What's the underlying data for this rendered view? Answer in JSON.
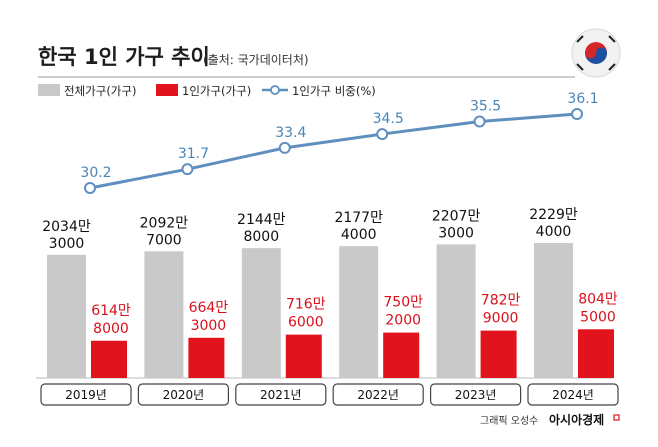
{
  "title": "한국 1인 가구 추이",
  "source": "(출처: 국가데이터처)",
  "credit": {
    "prefix": "그래픽 오성수",
    "brand": "아시아경제"
  },
  "chart_data": {
    "type": "bar",
    "categories": [
      "2019년",
      "2020년",
      "2021년",
      "2022년",
      "2023년",
      "2024년"
    ],
    "series": [
      {
        "name": "전체가구(가구)",
        "color": "#c9c9c9",
        "values": [
          20343000,
          20927000,
          21448000,
          21774000,
          22073000,
          22294000
        ],
        "labels": [
          [
            "2034만",
            "3000"
          ],
          [
            "2092만",
            "7000"
          ],
          [
            "2144만",
            "8000"
          ],
          [
            "2177만",
            "4000"
          ],
          [
            "2207만",
            "3000"
          ],
          [
            "2229만",
            "4000"
          ]
        ]
      },
      {
        "name": "1인가구(가구)",
        "color": "#e1141d",
        "values": [
          6148000,
          6643000,
          7166000,
          7502000,
          7829000,
          8045000
        ],
        "labels": [
          [
            "614만",
            "8000"
          ],
          [
            "664만",
            "3000"
          ],
          [
            "716만",
            "6000"
          ],
          [
            "750만",
            "2000"
          ],
          [
            "782만",
            "9000"
          ],
          [
            "804만",
            "5000"
          ]
        ]
      },
      {
        "name": "1인가구 비중(%)",
        "type": "line",
        "color": "#5f8fbe",
        "values": [
          30.2,
          31.7,
          33.4,
          34.5,
          35.5,
          36.1
        ],
        "labels": [
          "30.2",
          "31.7",
          "33.4",
          "34.5",
          "35.5",
          "36.1"
        ]
      }
    ],
    "title": "한국 1인 가구 추이",
    "xlabel": "",
    "ylabel": "",
    "ylim": [
      0,
      30000000
    ]
  }
}
